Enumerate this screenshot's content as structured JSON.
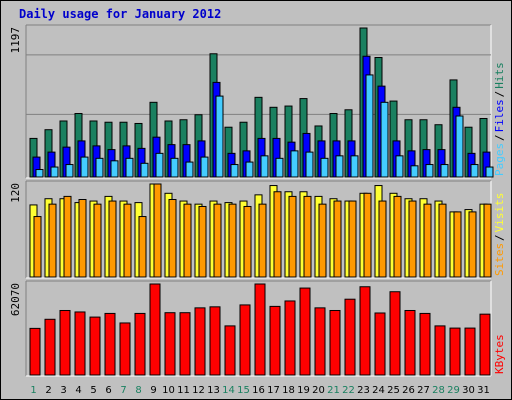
{
  "title": "Daily usage for January 2012",
  "colors": {
    "background": "#c0c0c0",
    "title": "#0000cc",
    "pages": "#44ccff",
    "files": "#0000ff",
    "hits": "#1a8060",
    "visits": "#ffff33",
    "sites": "#ff9900",
    "kbytes": "#ff0000",
    "weekday_label": "#000000",
    "weekend_label": "#1a8060"
  },
  "chart_data": [
    {
      "type": "bar",
      "panel": "hits_files_pages",
      "max_label": "1197",
      "ylim": [
        0,
        1197
      ],
      "categories": [
        "1",
        "2",
        "3",
        "4",
        "5",
        "6",
        "7",
        "8",
        "9",
        "10",
        "11",
        "12",
        "13",
        "14",
        "15",
        "16",
        "17",
        "18",
        "19",
        "20",
        "21",
        "22",
        "23",
        "24",
        "25",
        "26",
        "27",
        "28",
        "29",
        "30",
        "31"
      ],
      "weekend_days": [
        "1",
        "7",
        "8",
        "14",
        "15",
        "21",
        "22",
        "28",
        "29"
      ],
      "series": [
        {
          "name": "Hits",
          "values": [
            310,
            380,
            450,
            510,
            450,
            440,
            440,
            430,
            600,
            450,
            460,
            500,
            990,
            400,
            440,
            640,
            560,
            570,
            630,
            410,
            510,
            540,
            1197,
            960,
            610,
            460,
            460,
            420,
            780,
            400,
            470
          ]
        },
        {
          "name": "Files",
          "values": [
            160,
            200,
            240,
            290,
            250,
            220,
            250,
            230,
            320,
            260,
            260,
            290,
            760,
            190,
            210,
            310,
            310,
            280,
            350,
            290,
            290,
            290,
            970,
            730,
            290,
            210,
            220,
            220,
            560,
            190,
            200
          ]
        },
        {
          "name": "Pages",
          "values": [
            60,
            80,
            100,
            160,
            150,
            130,
            150,
            110,
            190,
            150,
            120,
            160,
            650,
            100,
            120,
            170,
            150,
            210,
            200,
            150,
            170,
            170,
            820,
            600,
            170,
            90,
            100,
            100,
            490,
            100,
            80
          ]
        }
      ],
      "legend": [
        "Pages",
        "Files",
        "Hits"
      ]
    },
    {
      "type": "bar",
      "panel": "visits_sites",
      "max_label": "120",
      "ylim": [
        0,
        120
      ],
      "categories": [
        "1",
        "2",
        "3",
        "4",
        "5",
        "6",
        "7",
        "8",
        "9",
        "10",
        "11",
        "12",
        "13",
        "14",
        "15",
        "16",
        "17",
        "18",
        "19",
        "20",
        "21",
        "22",
        "23",
        "24",
        "25",
        "26",
        "27",
        "28",
        "29",
        "30",
        "31"
      ],
      "series": [
        {
          "name": "Visits",
          "values": [
            93,
            101,
            101,
            96,
            98,
            104,
            98,
            96,
            120,
            108,
            98,
            94,
            98,
            96,
            98,
            106,
            118,
            110,
            110,
            104,
            101,
            98,
            108,
            118,
            108,
            101,
            101,
            98,
            84,
            87,
            94
          ]
        },
        {
          "name": "Sites",
          "values": [
            78,
            94,
            104,
            100,
            94,
            98,
            94,
            78,
            120,
            100,
            94,
            91,
            94,
            94,
            91,
            94,
            110,
            104,
            104,
            94,
            98,
            98,
            108,
            98,
            104,
            98,
            94,
            94,
            84,
            84,
            94
          ]
        }
      ],
      "legend": [
        "Sites",
        "Visits"
      ]
    },
    {
      "type": "bar",
      "panel": "kbytes",
      "max_label": "62070",
      "ylim": [
        0,
        62070
      ],
      "categories": [
        "1",
        "2",
        "3",
        "4",
        "5",
        "6",
        "7",
        "8",
        "9",
        "10",
        "11",
        "12",
        "13",
        "14",
        "15",
        "16",
        "17",
        "18",
        "19",
        "20",
        "21",
        "22",
        "23",
        "24",
        "25",
        "26",
        "27",
        "28",
        "29",
        "30",
        "31"
      ],
      "series": [
        {
          "name": "KBytes",
          "values": [
            31800,
            38000,
            44000,
            43000,
            39500,
            42000,
            35500,
            42000,
            62070,
            42500,
            42500,
            45800,
            46500,
            33500,
            47800,
            62070,
            46800,
            50500,
            59300,
            45800,
            44000,
            51700,
            60200,
            42300,
            56800,
            44000,
            42000,
            33500,
            32000,
            32000,
            41500
          ]
        }
      ],
      "legend": [
        "KBytes"
      ]
    }
  ]
}
